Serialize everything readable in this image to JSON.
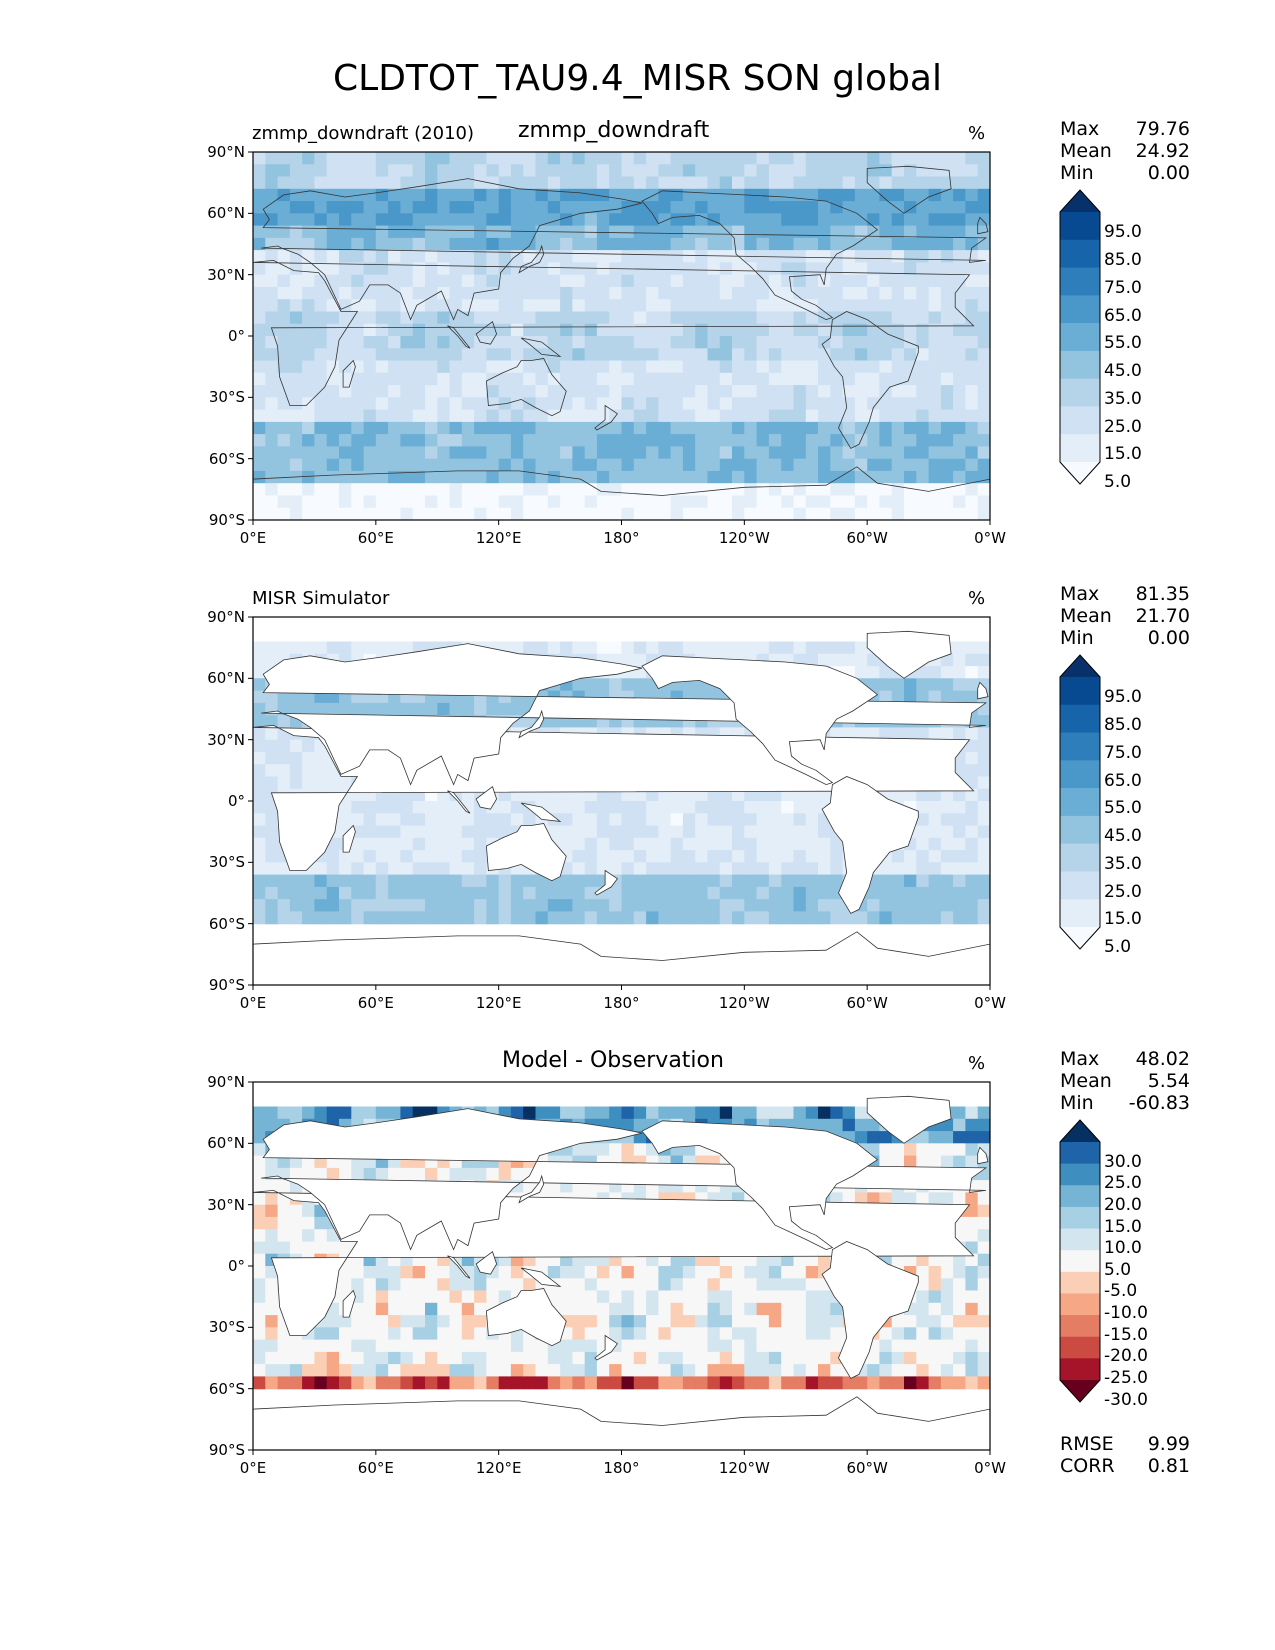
{
  "title": "CLDTOT_TAU9.4_MISR SON global",
  "lat_ticks": [
    "90°N",
    "60°N",
    "30°N",
    "0°",
    "30°S",
    "60°S",
    "90°S"
  ],
  "lon_ticks": [
    "0°E",
    "60°E",
    "120°E",
    "180°",
    "120°W",
    "60°W",
    "0°W"
  ],
  "seq_levels": [
    "5.0",
    "15.0",
    "25.0",
    "35.0",
    "45.0",
    "55.0",
    "65.0",
    "75.0",
    "85.0",
    "95.0"
  ],
  "div_levels": [
    "-30.0",
    "-25.0",
    "-20.0",
    "-15.0",
    "-10.0",
    "-5.0",
    "5.0",
    "10.0",
    "15.0",
    "20.0",
    "25.0",
    "30.0"
  ],
  "colors": {
    "seq": [
      "#f7fbff",
      "#e3eef9",
      "#cfe1f2",
      "#b5d4e9",
      "#93c4df",
      "#6aaed6",
      "#4a97c9",
      "#2e7ebc",
      "#1764ab",
      "#084a91",
      "#08306b"
    ],
    "div": [
      "#67001f",
      "#a51429",
      "#cb4b43",
      "#e47d64",
      "#f6a785",
      "#fbcfb6",
      "#f7f7f7",
      "#d3e6f0",
      "#a7d0e4",
      "#76b4d5",
      "#3f8ec0",
      "#1f63a8",
      "#053061"
    ],
    "land_outline": "#333333"
  },
  "panels": [
    {
      "left_label": "zmmp_downdraft (2010)",
      "center_label": "zmmp_downdraft",
      "units": "%",
      "max_label": "Max",
      "max": "79.76",
      "mean_label": "Mean",
      "mean": "24.92",
      "min_label": "Min",
      "min": "0.00"
    },
    {
      "left_label": "MISR Simulator",
      "center_label": "",
      "units": "%",
      "max_label": "Max",
      "max": "81.35",
      "mean_label": "Mean",
      "mean": "21.70",
      "min_label": "Min",
      "min": "0.00"
    },
    {
      "left_label": "",
      "center_label": "Model - Observation",
      "units": "%",
      "max_label": "Max",
      "max": "48.02",
      "mean_label": "Mean",
      "mean": "5.54",
      "min_label": "Min",
      "min": "-60.83",
      "rmse_label": "RMSE",
      "rmse": "9.99",
      "corr_label": "CORR",
      "corr": "0.81"
    }
  ]
}
